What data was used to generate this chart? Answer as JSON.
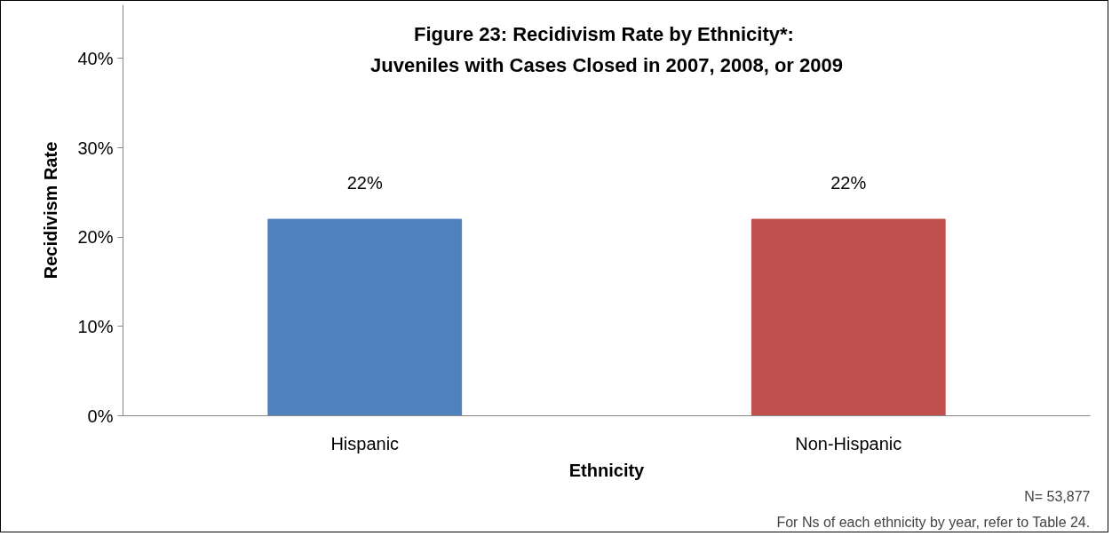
{
  "chart_data": {
    "type": "bar",
    "title": "Figure 23:  Recidivism Rate by Ethnicity*:\nJuveniles with Cases Closed in 2007, 2008, or 2009",
    "xlabel": "Ethnicity",
    "ylabel": "Recidivism Rate",
    "categories": [
      "Hispanic",
      "Non-Hispanic"
    ],
    "values": [
      22,
      22
    ],
    "colors": [
      "#4f81bd",
      "#c0504d"
    ],
    "ylim": [
      0,
      46
    ],
    "yticks": [
      {
        "value": 0,
        "label": "0%"
      },
      {
        "value": 10,
        "label": "10%"
      },
      {
        "value": 20,
        "label": "20%"
      },
      {
        "value": 30,
        "label": "30%"
      },
      {
        "value": 40,
        "label": "40%"
      }
    ],
    "value_labels": [
      "22%",
      "22%"
    ],
    "grid": false,
    "annotations": [
      "N= 53,877",
      "For Ns of each ethnicity by year, refer to Table 24."
    ]
  }
}
